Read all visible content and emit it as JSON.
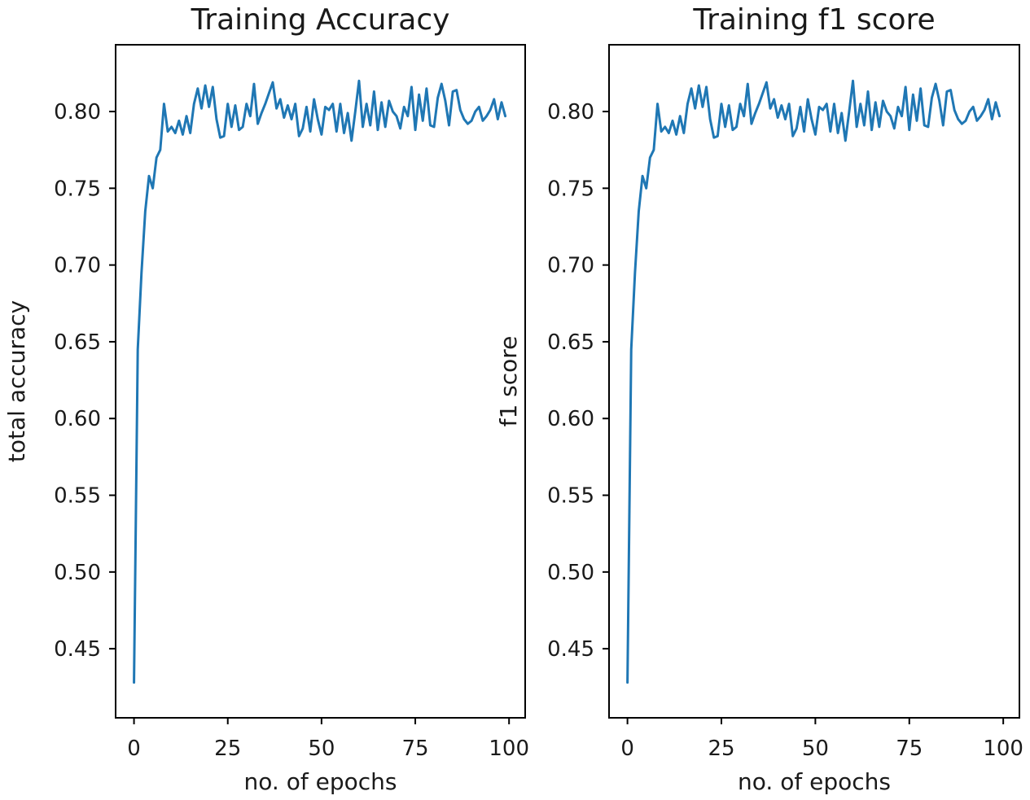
{
  "chart_data": [
    {
      "type": "line",
      "title": "Training Accuracy",
      "xlabel": "no. of epochs",
      "ylabel": "total accuracy",
      "xlim": [
        -4.9,
        104.3
      ],
      "ylim": [
        0.405,
        0.8435
      ],
      "xticks": [
        0,
        25,
        50,
        75,
        100
      ],
      "yticks": [
        0.45,
        0.5,
        0.55,
        0.6,
        0.65,
        0.7,
        0.75,
        0.8
      ],
      "ytick_labels": [
        "0.45",
        "0.50",
        "0.55",
        "0.60",
        "0.65",
        "0.70",
        "0.75",
        "0.80"
      ],
      "grid": false,
      "color": "#1f77b4",
      "series": [
        {
          "x": [
            0,
            1,
            2,
            3,
            4,
            5,
            6,
            7,
            8,
            9,
            10,
            11,
            12,
            13,
            14,
            15,
            16,
            17,
            18,
            19,
            20,
            21,
            22,
            23,
            24,
            25,
            26,
            27,
            28,
            29,
            30,
            31,
            32,
            33,
            34,
            35,
            36,
            37,
            38,
            39,
            40,
            41,
            42,
            43,
            44,
            45,
            46,
            47,
            48,
            49,
            50,
            51,
            52,
            53,
            54,
            55,
            56,
            57,
            58,
            59,
            60,
            61,
            62,
            63,
            64,
            65,
            66,
            67,
            68,
            69,
            70,
            71,
            72,
            73,
            74,
            75,
            76,
            77,
            78,
            79,
            80,
            81,
            82,
            83,
            84,
            85,
            86,
            87,
            88,
            89,
            90,
            91,
            92,
            93,
            94,
            95,
            96,
            97,
            98,
            99
          ],
          "values": [
            0.428,
            0.645,
            0.695,
            0.735,
            0.758,
            0.75,
            0.77,
            0.775,
            0.805,
            0.787,
            0.79,
            0.786,
            0.794,
            0.785,
            0.797,
            0.786,
            0.805,
            0.815,
            0.802,
            0.817,
            0.803,
            0.816,
            0.795,
            0.783,
            0.784,
            0.805,
            0.79,
            0.804,
            0.788,
            0.79,
            0.805,
            0.797,
            0.818,
            0.792,
            0.799,
            0.805,
            0.812,
            0.819,
            0.802,
            0.808,
            0.796,
            0.804,
            0.795,
            0.805,
            0.784,
            0.789,
            0.803,
            0.787,
            0.808,
            0.795,
            0.785,
            0.803,
            0.801,
            0.805,
            0.787,
            0.805,
            0.786,
            0.799,
            0.781,
            0.8,
            0.82,
            0.79,
            0.805,
            0.791,
            0.813,
            0.788,
            0.806,
            0.79,
            0.807,
            0.8,
            0.797,
            0.789,
            0.803,
            0.797,
            0.816,
            0.788,
            0.811,
            0.794,
            0.815,
            0.791,
            0.79,
            0.809,
            0.818,
            0.807,
            0.791,
            0.813,
            0.814,
            0.801,
            0.795,
            0.792,
            0.794,
            0.8,
            0.803,
            0.794,
            0.797,
            0.801,
            0.808,
            0.795,
            0.806,
            0.797
          ]
        }
      ]
    },
    {
      "type": "line",
      "title": "Training f1 score",
      "xlabel": "no. of epochs",
      "ylabel": "f1 score",
      "xlim": [
        -4.9,
        104.3
      ],
      "ylim": [
        0.405,
        0.8435
      ],
      "xticks": [
        0,
        25,
        50,
        75,
        100
      ],
      "yticks": [
        0.45,
        0.5,
        0.55,
        0.6,
        0.65,
        0.7,
        0.75,
        0.8
      ],
      "ytick_labels": [
        "0.45",
        "0.50",
        "0.55",
        "0.60",
        "0.65",
        "0.70",
        "0.75",
        "0.80"
      ],
      "grid": false,
      "color": "#1f77b4",
      "series": [
        {
          "x": [
            0,
            1,
            2,
            3,
            4,
            5,
            6,
            7,
            8,
            9,
            10,
            11,
            12,
            13,
            14,
            15,
            16,
            17,
            18,
            19,
            20,
            21,
            22,
            23,
            24,
            25,
            26,
            27,
            28,
            29,
            30,
            31,
            32,
            33,
            34,
            35,
            36,
            37,
            38,
            39,
            40,
            41,
            42,
            43,
            44,
            45,
            46,
            47,
            48,
            49,
            50,
            51,
            52,
            53,
            54,
            55,
            56,
            57,
            58,
            59,
            60,
            61,
            62,
            63,
            64,
            65,
            66,
            67,
            68,
            69,
            70,
            71,
            72,
            73,
            74,
            75,
            76,
            77,
            78,
            79,
            80,
            81,
            82,
            83,
            84,
            85,
            86,
            87,
            88,
            89,
            90,
            91,
            92,
            93,
            94,
            95,
            96,
            97,
            98,
            99
          ],
          "values": [
            0.428,
            0.645,
            0.695,
            0.735,
            0.758,
            0.75,
            0.77,
            0.775,
            0.805,
            0.787,
            0.79,
            0.786,
            0.794,
            0.785,
            0.797,
            0.786,
            0.805,
            0.815,
            0.802,
            0.817,
            0.803,
            0.816,
            0.795,
            0.783,
            0.784,
            0.805,
            0.79,
            0.804,
            0.788,
            0.79,
            0.805,
            0.797,
            0.818,
            0.792,
            0.799,
            0.805,
            0.812,
            0.819,
            0.802,
            0.808,
            0.796,
            0.804,
            0.795,
            0.805,
            0.784,
            0.789,
            0.803,
            0.787,
            0.808,
            0.795,
            0.785,
            0.803,
            0.801,
            0.805,
            0.787,
            0.805,
            0.786,
            0.799,
            0.781,
            0.8,
            0.82,
            0.79,
            0.805,
            0.791,
            0.813,
            0.788,
            0.806,
            0.79,
            0.807,
            0.8,
            0.797,
            0.789,
            0.803,
            0.797,
            0.816,
            0.788,
            0.811,
            0.794,
            0.815,
            0.791,
            0.79,
            0.809,
            0.818,
            0.807,
            0.791,
            0.813,
            0.814,
            0.801,
            0.795,
            0.792,
            0.794,
            0.8,
            0.803,
            0.794,
            0.797,
            0.801,
            0.808,
            0.795,
            0.806,
            0.797
          ]
        }
      ]
    }
  ]
}
